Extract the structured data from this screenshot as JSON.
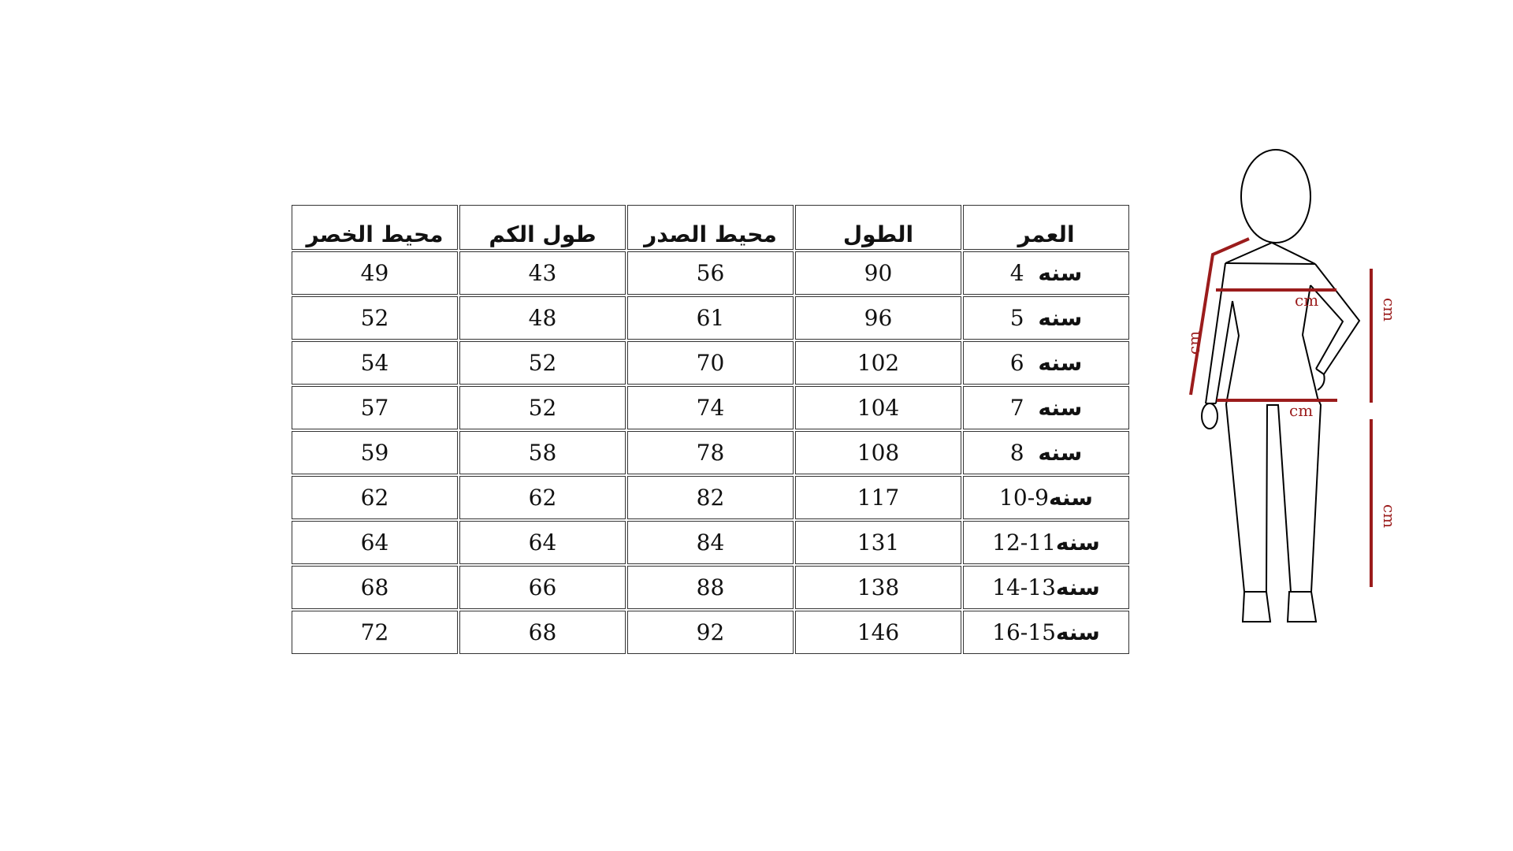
{
  "table": {
    "headers": [
      "محيط الخصر",
      "طول الكم",
      "محيط الصدر",
      "الطول",
      "العمر"
    ],
    "rows": [
      {
        "waist": "49",
        "sleeve": "43",
        "chest": "56",
        "length": "90",
        "age_num": "4",
        "age_word": "سنه"
      },
      {
        "waist": "52",
        "sleeve": "48",
        "chest": "61",
        "length": "96",
        "age_num": "5",
        "age_word": "سنه"
      },
      {
        "waist": "54",
        "sleeve": "52",
        "chest": "70",
        "length": "102",
        "age_num": "6",
        "age_word": "سنه"
      },
      {
        "waist": "57",
        "sleeve": "52",
        "chest": "74",
        "length": "104",
        "age_num": "7",
        "age_word": "سنه"
      },
      {
        "waist": "59",
        "sleeve": "58",
        "chest": "78",
        "length": "108",
        "age_num": "8",
        "age_word": "سنه"
      },
      {
        "waist": "62",
        "sleeve": "62",
        "chest": "82",
        "length": "117",
        "age_num": "9-10",
        "age_word": "سنه"
      },
      {
        "waist": "64",
        "sleeve": "64",
        "chest": "84",
        "length": "131",
        "age_num": "11-12",
        "age_word": "سنه"
      },
      {
        "waist": "68",
        "sleeve": "66",
        "chest": "88",
        "length": "138",
        "age_num": "13-14",
        "age_word": "سنه"
      },
      {
        "waist": "72",
        "sleeve": "68",
        "chest": "92",
        "length": "146",
        "age_num": "15-16",
        "age_word": "سنه"
      }
    ]
  },
  "figure": {
    "unit_label": "cm",
    "measure_color": "#9b1c1c",
    "outline_color": "#000000"
  }
}
